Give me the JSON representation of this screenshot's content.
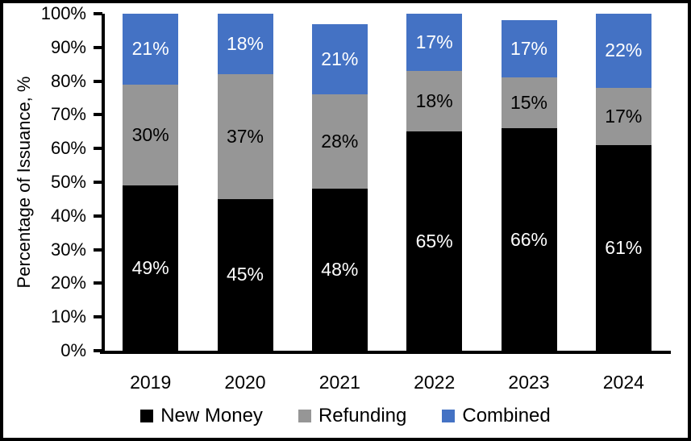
{
  "chart_data": {
    "type": "bar",
    "subtype": "stacked-100-percent",
    "title": "",
    "ylabel": "Percentage of Issuance, %",
    "xlabel": "",
    "categories": [
      "2019",
      "2020",
      "2021",
      "2022",
      "2023",
      "2024"
    ],
    "series": [
      {
        "name": "New Money",
        "color": "#000000",
        "label_color": "#ffffff",
        "values": [
          49,
          45,
          48,
          65,
          66,
          61
        ]
      },
      {
        "name": "Refunding",
        "color": "#969696",
        "label_color": "#000000",
        "values": [
          30,
          37,
          28,
          18,
          15,
          17
        ]
      },
      {
        "name": "Combined",
        "color": "#4472c4",
        "label_color": "#ffffff",
        "values": [
          21,
          18,
          21,
          17,
          17,
          22
        ]
      }
    ],
    "data_label_suffix": "%",
    "y_ticks": [
      "0%",
      "10%",
      "20%",
      "30%",
      "40%",
      "50%",
      "60%",
      "70%",
      "80%",
      "90%",
      "100%"
    ],
    "ylim": [
      0,
      100
    ],
    "grid": false,
    "legend_position": "bottom",
    "axis_color": "#000000",
    "background_color": "#ffffff",
    "border_color": "#000000"
  }
}
